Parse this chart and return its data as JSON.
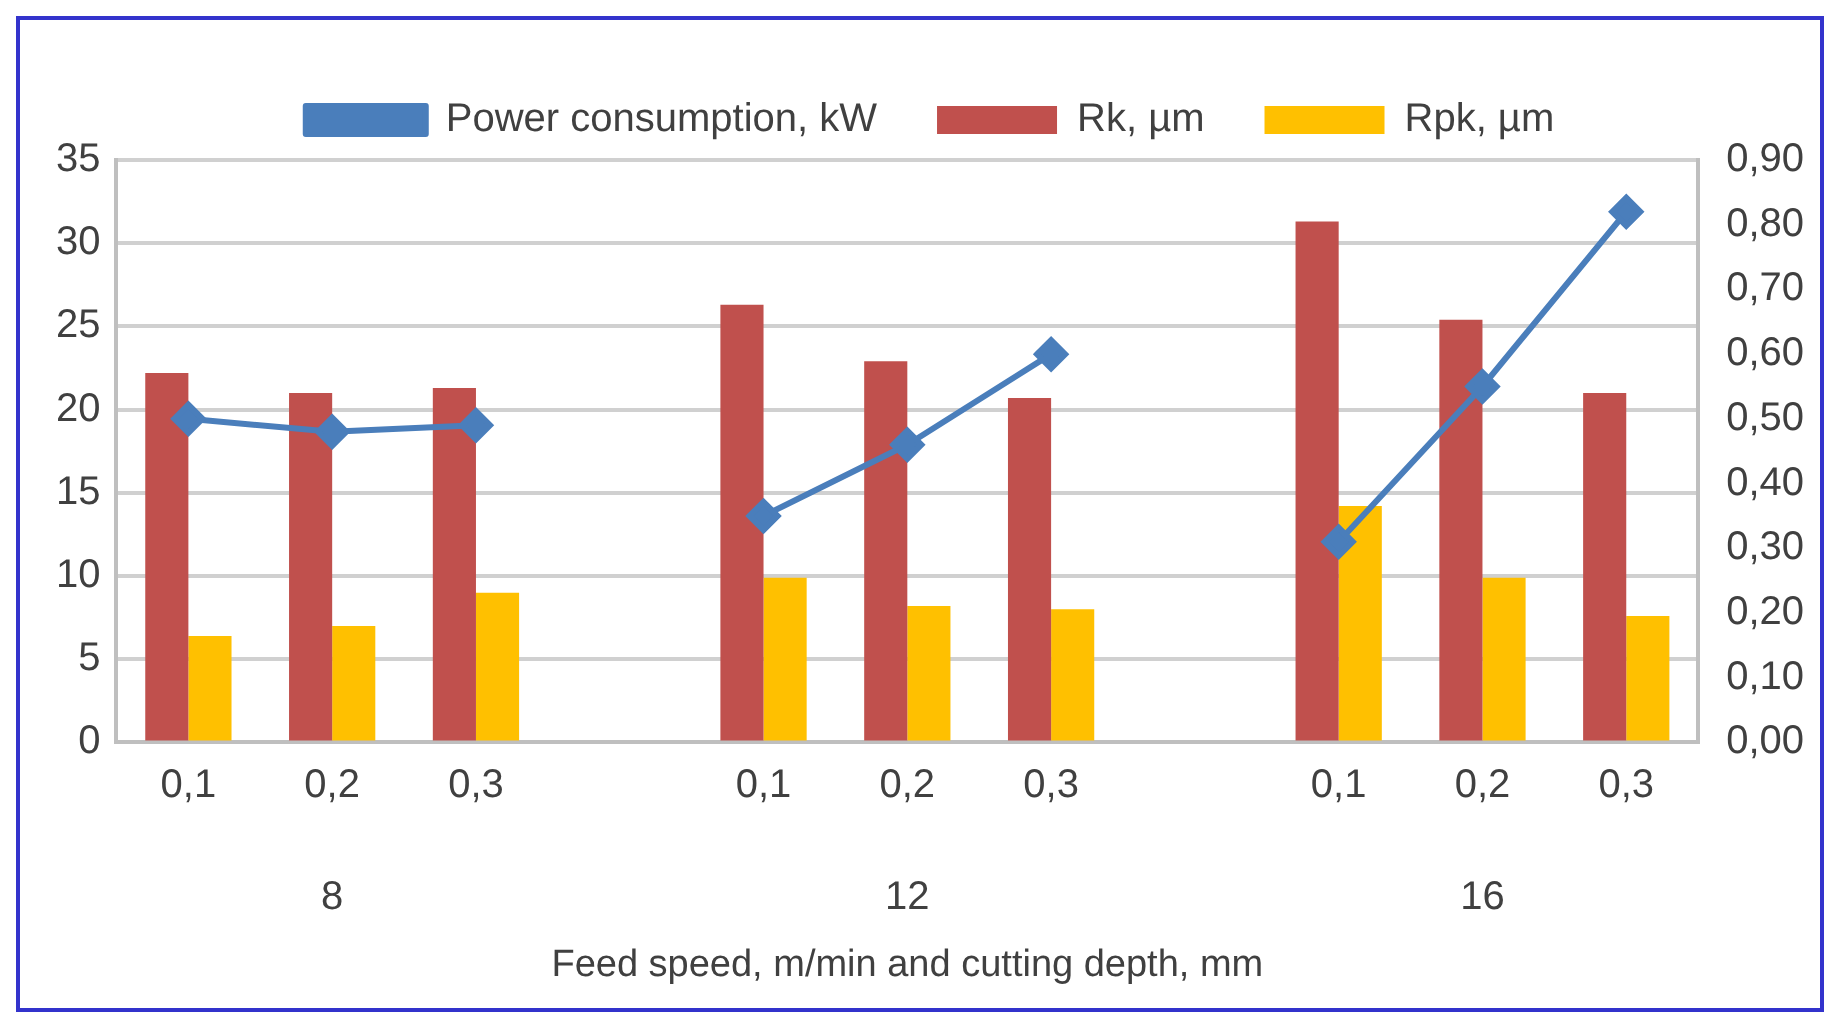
{
  "chart_data": {
    "type": "bar",
    "xlabel": "Feed speed, m/min and cutting depth, mm",
    "categories": [
      "0,1",
      "0,2",
      "0,3",
      null,
      "0,1",
      "0,2",
      "0,3",
      null,
      "0,1",
      "0,2",
      "0,3"
    ],
    "series": [
      {
        "name": "Rk, µm",
        "color": "#c0504d",
        "values": [
          22.2,
          21.0,
          21.3,
          null,
          26.3,
          22.9,
          20.7,
          null,
          31.3,
          25.4,
          21.0
        ]
      },
      {
        "name": "Rpk, µm",
        "color": "#ffc000",
        "values": [
          6.4,
          7.0,
          9.0,
          null,
          9.9,
          8.2,
          8.0,
          null,
          14.2,
          9.9,
          7.6
        ]
      },
      {
        "name": "Power consumption, kW",
        "type": "line",
        "axis": "y2",
        "color": "#4a7ebb",
        "marker": "diamond",
        "values": [
          0.5,
          0.48,
          0.49,
          null,
          0.35,
          0.46,
          0.6,
          null,
          0.31,
          0.55,
          0.82
        ]
      }
    ],
    "annotations": [
      "8",
      "12",
      "16"
    ],
    "ylim": [
      0,
      35
    ],
    "yticks": [
      0,
      5,
      10,
      15,
      20,
      25,
      30,
      35
    ],
    "y2lim": [
      0,
      0.9
    ],
    "y2ticks": [
      {
        "value": 0,
        "label": "0,00"
      },
      {
        "value": 0.1,
        "label": "0,10"
      },
      {
        "value": 0.2,
        "label": "0,20"
      },
      {
        "value": 0.3,
        "label": "0,30"
      },
      {
        "value": 0.4,
        "label": "0,40"
      },
      {
        "value": 0.5,
        "label": "0,50"
      },
      {
        "value": 0.6,
        "label": "0,60"
      },
      {
        "value": 0.7,
        "label": "0,70"
      },
      {
        "value": 0.8,
        "label": "0,80"
      },
      {
        "value": 0.9,
        "label": "0,90"
      }
    ],
    "grid": "y",
    "legend": "top"
  }
}
